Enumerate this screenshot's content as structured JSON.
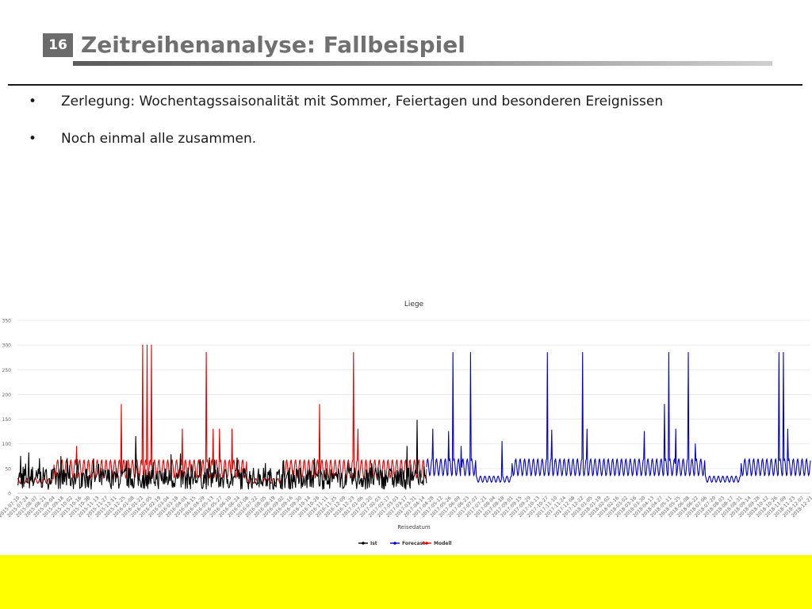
{
  "slide": {
    "number": "16",
    "title": "Zeitreihenanalyse: Fallbeispiel",
    "bullets": [
      {
        "marker": "•",
        "text": "Zerlegung: Wochentagssaisonalität mit Sommer, Feiertagen und besonderen Ereignissen"
      },
      {
        "marker": "•",
        "text": "Noch einmal alle zusammen."
      }
    ]
  },
  "colors": {
    "ist": "#000000",
    "forecast": "#0000cc",
    "modell": "#e00000",
    "band": "#ffff00"
  },
  "chart_data": {
    "type": "line",
    "title": "Liege",
    "xlabel": "Reisedatum",
    "ylabel": "",
    "ylim": [
      0,
      350
    ],
    "yticks": [
      0,
      50,
      100,
      150,
      200,
      250,
      300,
      350
    ],
    "grid": true,
    "legend_position": "bottom",
    "x_start": "2015-07-10",
    "x_end": "2018-12-21",
    "x_split": "2017-04-20",
    "x_ticks": [
      "2015-07-10",
      "2015-07-24",
      "2015-08-07",
      "2015-08-21",
      "2015-09-04",
      "2015-09-18",
      "2015-10-02",
      "2015-10-16",
      "2015-10-30",
      "2015-11-13",
      "2015-11-27",
      "2015-12-11",
      "2015-12-25",
      "2016-01-08",
      "2016-01-22",
      "2016-02-05",
      "2016-02-19",
      "2016-03-04",
      "2016-03-18",
      "2016-04-01",
      "2016-04-15",
      "2016-04-29",
      "2016-05-13",
      "2016-05-27",
      "2016-06-10",
      "2016-06-24",
      "2016-07-08",
      "2016-07-22",
      "2016-08-05",
      "2016-08-19",
      "2016-09-02",
      "2016-09-16",
      "2016-09-30",
      "2016-10-14",
      "2016-10-28",
      "2016-11-11",
      "2016-11-25",
      "2016-12-09",
      "2016-12-23",
      "2017-01-06",
      "2017-01-20",
      "2017-02-03",
      "2017-02-17",
      "2017-03-03",
      "2017-03-17",
      "2017-03-31",
      "2017-04-14",
      "2017-04-28",
      "2017-05-12",
      "2017-05-26",
      "2017-06-09",
      "2017-06-23",
      "2017-07-07",
      "2017-07-21",
      "2017-08-04",
      "2017-08-18",
      "2017-09-01",
      "2017-09-15",
      "2017-09-29",
      "2017-10-13",
      "2017-10-27",
      "2017-11-10",
      "2017-11-24",
      "2017-12-08",
      "2017-12-22",
      "2018-01-05",
      "2018-01-19",
      "2018-02-02",
      "2018-02-16",
      "2018-03-02",
      "2018-03-16",
      "2018-03-30",
      "2018-04-13",
      "2018-04-27",
      "2018-05-11",
      "2018-05-25",
      "2018-06-08",
      "2018-06-22",
      "2018-07-06",
      "2018-07-20",
      "2018-08-03",
      "2018-08-17",
      "2018-08-31",
      "2018-09-14",
      "2018-09-28",
      "2018-10-12",
      "2018-10-26",
      "2018-11-09",
      "2018-11-23",
      "2018-12-07",
      "2018-12-21"
    ],
    "series": [
      {
        "name": "Ist",
        "x_range": [
          "2015-07-10",
          "2017-04-20"
        ],
        "level": 30,
        "noise": 22,
        "peaks": [
          {
            "x": "2015-07-15",
            "y": 75
          },
          {
            "x": "2015-07-28",
            "y": 82
          },
          {
            "x": "2015-08-14",
            "y": 70
          },
          {
            "x": "2016-01-14",
            "y": 115
          },
          {
            "x": "2016-03-10",
            "y": 78
          },
          {
            "x": "2016-03-25",
            "y": 80
          },
          {
            "x": "2016-04-25",
            "y": 68
          },
          {
            "x": "2016-05-10",
            "y": 72
          },
          {
            "x": "2017-04-05",
            "y": 148
          },
          {
            "x": "2017-03-20",
            "y": 95
          }
        ]
      },
      {
        "name": "Forecast",
        "x_range": [
          "2017-04-20",
          "2018-12-21"
        ],
        "weekly_range": [
          35,
          70
        ],
        "low_periods": [
          {
            "from": "2017-07-08",
            "to": "2017-09-02",
            "range": [
              22,
              35
            ]
          },
          {
            "from": "2018-07-07",
            "to": "2018-09-01",
            "range": [
              22,
              35
            ]
          }
        ],
        "peaks": [
          {
            "x": "2017-04-30",
            "y": 130
          },
          {
            "x": "2017-05-25",
            "y": 125
          },
          {
            "x": "2017-06-01",
            "y": 285
          },
          {
            "x": "2017-06-14",
            "y": 95
          },
          {
            "x": "2017-06-29",
            "y": 285
          },
          {
            "x": "2017-08-18",
            "y": 105
          },
          {
            "x": "2017-10-29",
            "y": 285
          },
          {
            "x": "2017-11-05",
            "y": 128
          },
          {
            "x": "2017-12-24",
            "y": 285
          },
          {
            "x": "2017-12-31",
            "y": 130
          },
          {
            "x": "2018-04-01",
            "y": 125
          },
          {
            "x": "2018-05-03",
            "y": 180
          },
          {
            "x": "2018-05-10",
            "y": 285
          },
          {
            "x": "2018-05-21",
            "y": 130
          },
          {
            "x": "2018-06-10",
            "y": 285
          },
          {
            "x": "2018-06-21",
            "y": 100
          },
          {
            "x": "2018-11-01",
            "y": 285
          },
          {
            "x": "2018-11-08",
            "y": 285
          },
          {
            "x": "2018-11-15",
            "y": 130
          }
        ]
      },
      {
        "name": "Modell",
        "x_range": [
          "2015-07-10",
          "2017-04-20"
        ],
        "weekly_range": [
          30,
          68
        ],
        "low_periods": [
          {
            "from": "2015-07-10",
            "to": "2015-09-05",
            "range": [
              20,
              30
            ]
          },
          {
            "from": "2016-07-09",
            "to": "2016-09-03",
            "range": [
              20,
              30
            ]
          }
        ],
        "peaks": [
          {
            "x": "2015-10-12",
            "y": 95
          },
          {
            "x": "2015-12-22",
            "y": 180
          },
          {
            "x": "2016-01-25",
            "y": 300
          },
          {
            "x": "2016-02-01",
            "y": 300
          },
          {
            "x": "2016-02-08",
            "y": 300
          },
          {
            "x": "2016-03-28",
            "y": 130
          },
          {
            "x": "2016-05-05",
            "y": 285
          },
          {
            "x": "2016-05-16",
            "y": 130
          },
          {
            "x": "2016-05-26",
            "y": 130
          },
          {
            "x": "2016-06-15",
            "y": 130
          },
          {
            "x": "2016-11-01",
            "y": 180
          },
          {
            "x": "2016-12-25",
            "y": 285
          },
          {
            "x": "2017-01-01",
            "y": 130
          }
        ]
      }
    ]
  }
}
